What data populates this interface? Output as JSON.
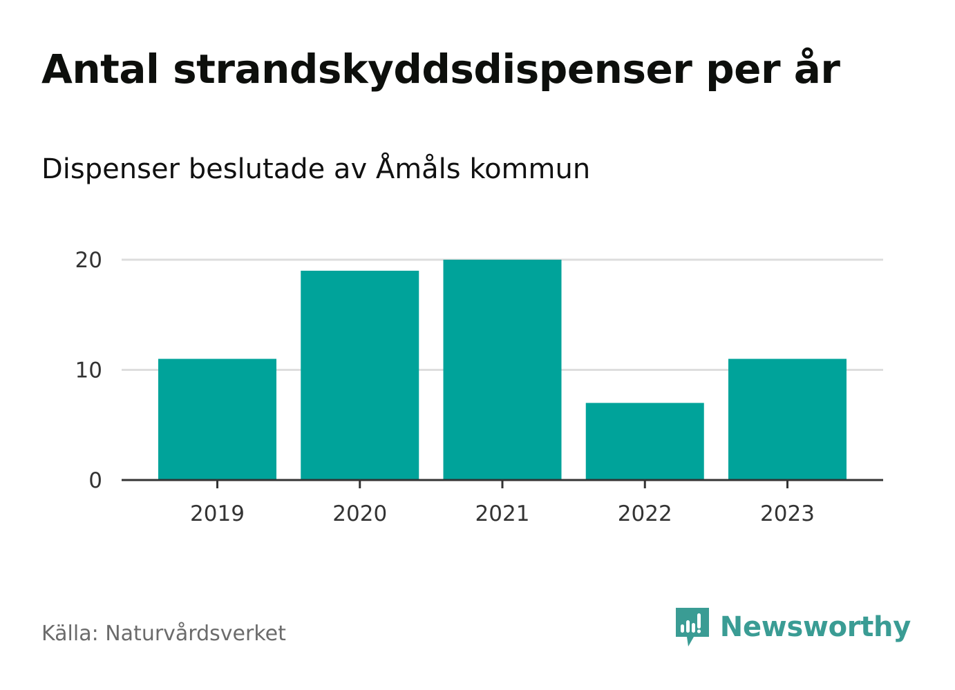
{
  "colors": {
    "bar": "#00a39a",
    "grid": "#dddddd",
    "axis": "#333333",
    "brand": "#3a9c94"
  },
  "chart_data": {
    "type": "bar",
    "title": "Antal strandskyddsdispenser per år",
    "subtitle": "Dispenser beslutade av Åmåls kommun",
    "categories": [
      "2019",
      "2020",
      "2021",
      "2022",
      "2023"
    ],
    "values": [
      11,
      19,
      20,
      7,
      11
    ],
    "xlabel": "",
    "ylabel": "",
    "ylim": [
      0,
      20
    ],
    "yticks": [
      {
        "value": 0,
        "label": "0"
      },
      {
        "value": 10,
        "label": "10"
      },
      {
        "value": 20,
        "label": "20"
      }
    ],
    "grid": true,
    "legend": "none"
  },
  "footer": {
    "source": "Källa: Naturvårdsverket",
    "brand": "Newsworthy"
  },
  "icons": {
    "brand_logo": "newsworthy-logo-icon"
  }
}
